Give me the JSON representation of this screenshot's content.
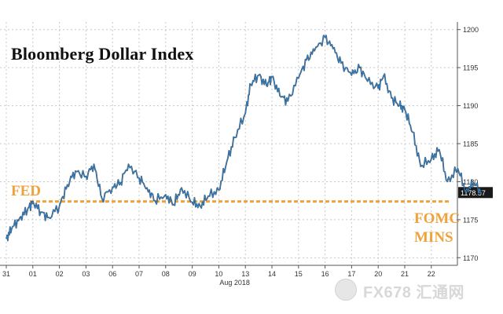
{
  "chart_data": {
    "type": "line",
    "title": "Bloomberg Dollar Index",
    "xlabel": "",
    "ylabel": "",
    "ylim": [
      1169,
      1201
    ],
    "yticks": [
      1170,
      1175,
      1180,
      1185,
      1190,
      1195,
      1200
    ],
    "xticks": [
      "31",
      "01",
      "02",
      "03",
      "06",
      "07",
      "08",
      "09",
      "10",
      "13",
      "14",
      "15",
      "16",
      "17",
      "20",
      "21",
      "22"
    ],
    "xlabel_sub": "Aug 2018",
    "last_value_label": "1178.57",
    "grid": true,
    "series": [
      {
        "color": "#2f7fc4",
        "x": [
          0,
          0.2,
          0.5,
          0.8,
          1.0,
          1.3,
          1.6,
          2.0,
          2.3,
          2.6,
          3.0,
          3.3,
          3.6,
          4.0,
          4.3,
          4.6,
          5.0,
          5.3,
          5.6,
          6.0,
          6.3,
          6.6,
          7.0,
          7.3,
          7.6,
          8.0,
          8.3,
          8.6,
          9.0,
          9.2,
          9.5,
          9.8,
          10.0,
          10.3,
          10.6,
          11.0,
          11.3,
          11.6,
          12.0,
          12.3,
          12.6,
          13.0,
          13.3,
          13.6,
          14.0,
          14.2,
          14.5,
          14.8,
          15.0,
          15.3,
          15.6,
          16.0,
          16.3,
          16.6,
          17.0,
          17.3,
          17.6,
          17.9
        ],
        "values": [
          1172.5,
          1173.8,
          1175.2,
          1176.3,
          1177.4,
          1176.0,
          1175.3,
          1176.8,
          1179.6,
          1181.4,
          1180.7,
          1182.3,
          1177.8,
          1179.3,
          1179.9,
          1182.3,
          1180.5,
          1179.2,
          1177.5,
          1178.3,
          1177.0,
          1179.2,
          1177.3,
          1176.8,
          1178.1,
          1178.9,
          1182.6,
          1185.8,
          1189.0,
          1192.8,
          1194.0,
          1192.6,
          1193.8,
          1191.3,
          1190.6,
          1193.6,
          1196.0,
          1197.2,
          1199.0,
          1197.5,
          1195.6,
          1194.0,
          1195.0,
          1193.2,
          1192.3,
          1193.9,
          1191.0,
          1190.0,
          1189.5,
          1186.5,
          1182.0,
          1183.0,
          1184.2,
          1180.0,
          1181.7,
          1178.8,
          1179.8,
          1178.57
        ]
      }
    ],
    "reference_lines": [
      {
        "y": 1177.4,
        "color": "#f0a23a",
        "style": "dashed"
      }
    ],
    "annotations": [
      {
        "text": "FED"
      },
      {
        "text": "FOMC"
      },
      {
        "text": "MINS"
      }
    ]
  },
  "watermark": "FX678 汇通网"
}
